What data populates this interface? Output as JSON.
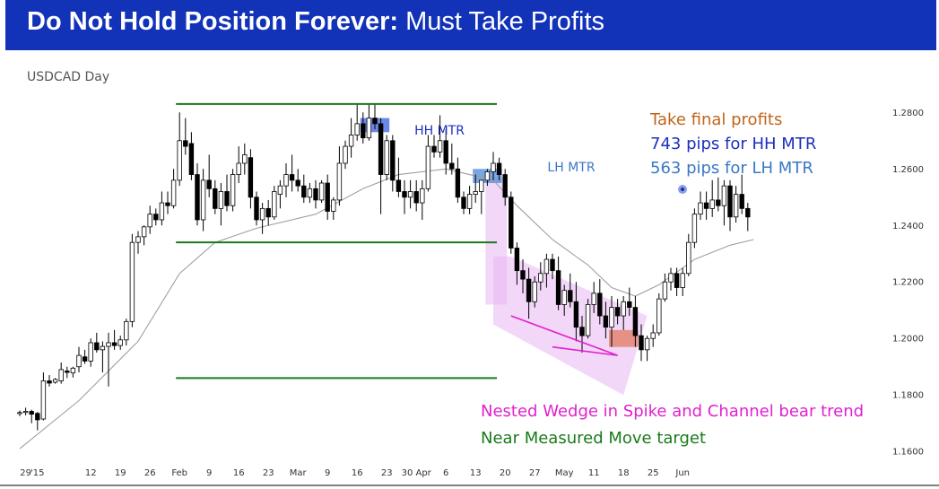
{
  "header": {
    "title_bold": "Do Not Hold Position Forever:",
    "title_rest": " Must Take Profits"
  },
  "chart_data": {
    "type": "candlestick",
    "symbol_label": "USDCAD Day",
    "y_ticks": [
      1.16,
      1.18,
      1.2,
      1.22,
      1.24,
      1.26,
      1.28
    ],
    "y_tick_labels": [
      "1.1600",
      "1.1800",
      "1.2000",
      "1.2200",
      "1.2400",
      "1.2600",
      "1.2800"
    ],
    "ylim": [
      1.148,
      1.302
    ],
    "x_tick_labels": [
      {
        "i": 1,
        "label": "29"
      },
      {
        "i": 3,
        "label": "'15"
      },
      {
        "i": 12,
        "label": "12"
      },
      {
        "i": 17,
        "label": "19"
      },
      {
        "i": 22,
        "label": "26"
      },
      {
        "i": 27,
        "label": "Feb"
      },
      {
        "i": 32,
        "label": "9"
      },
      {
        "i": 37,
        "label": "16"
      },
      {
        "i": 42,
        "label": "23"
      },
      {
        "i": 47,
        "label": "Mar"
      },
      {
        "i": 52,
        "label": "9"
      },
      {
        "i": 57,
        "label": "16"
      },
      {
        "i": 62,
        "label": "23"
      },
      {
        "i": 67,
        "label": "30 Apr"
      },
      {
        "i": 72,
        "label": "6"
      },
      {
        "i": 77,
        "label": "13"
      },
      {
        "i": 82,
        "label": "20"
      },
      {
        "i": 87,
        "label": "27"
      },
      {
        "i": 92,
        "label": "May"
      },
      {
        "i": 97,
        "label": "11"
      },
      {
        "i": 102,
        "label": "18"
      },
      {
        "i": 107,
        "label": "25"
      },
      {
        "i": 112,
        "label": "Jun"
      }
    ],
    "candles": [
      [
        1.1735,
        1.1745,
        1.1725,
        1.1738
      ],
      [
        1.1738,
        1.1755,
        1.1728,
        1.1742
      ],
      [
        1.1742,
        1.1748,
        1.17,
        1.1732
      ],
      [
        1.1735,
        1.174,
        1.1675,
        1.1712
      ],
      [
        1.1715,
        1.188,
        1.171,
        1.185
      ],
      [
        1.185,
        1.187,
        1.183,
        1.1842
      ],
      [
        1.1845,
        1.186,
        1.184,
        1.1855
      ],
      [
        1.185,
        1.1915,
        1.184,
        1.189
      ],
      [
        1.1885,
        1.19,
        1.186,
        1.188
      ],
      [
        1.1878,
        1.19,
        1.1862,
        1.1895
      ],
      [
        1.19,
        1.197,
        1.188,
        1.194
      ],
      [
        1.1935,
        1.196,
        1.191,
        1.192
      ],
      [
        1.192,
        1.2,
        1.19,
        1.1985
      ],
      [
        1.1985,
        1.202,
        1.195,
        1.196
      ],
      [
        1.196,
        1.199,
        1.188,
        1.1972
      ],
      [
        1.1972,
        1.202,
        1.183,
        1.1985
      ],
      [
        1.1985,
        1.203,
        1.196,
        1.1975
      ],
      [
        1.1975,
        1.201,
        1.196,
        1.1995
      ],
      [
        1.1995,
        1.207,
        1.1975,
        1.206
      ],
      [
        1.206,
        1.237,
        1.204,
        1.234
      ],
      [
        1.234,
        1.238,
        1.23,
        1.236
      ],
      [
        1.236,
        1.24,
        1.233,
        1.2395
      ],
      [
        1.2395,
        1.247,
        1.237,
        1.244
      ],
      [
        1.244,
        1.246,
        1.24,
        1.242
      ],
      [
        1.242,
        1.252,
        1.24,
        1.248
      ],
      [
        1.248,
        1.252,
        1.244,
        1.247
      ],
      [
        1.247,
        1.26,
        1.246,
        1.256
      ],
      [
        1.256,
        1.28,
        1.254,
        1.27
      ],
      [
        1.27,
        1.278,
        1.265,
        1.268
      ],
      [
        1.269,
        1.273,
        1.256,
        1.258
      ],
      [
        1.258,
        1.262,
        1.24,
        1.242
      ],
      [
        1.242,
        1.26,
        1.238,
        1.256
      ],
      [
        1.256,
        1.265,
        1.25,
        1.253
      ],
      [
        1.253,
        1.256,
        1.244,
        1.246
      ],
      [
        1.246,
        1.255,
        1.24,
        1.252
      ],
      [
        1.252,
        1.258,
        1.245,
        1.247
      ],
      [
        1.247,
        1.26,
        1.245,
        1.258
      ],
      [
        1.258,
        1.268,
        1.255,
        1.262
      ],
      [
        1.262,
        1.269,
        1.258,
        1.265
      ],
      [
        1.264,
        1.267,
        1.246,
        1.25
      ],
      [
        1.25,
        1.252,
        1.24,
        1.242
      ],
      [
        1.242,
        1.248,
        1.237,
        1.246
      ],
      [
        1.246,
        1.249,
        1.24,
        1.243
      ],
      [
        1.243,
        1.254,
        1.242,
        1.252
      ],
      [
        1.251,
        1.256,
        1.246,
        1.254
      ],
      [
        1.254,
        1.262,
        1.25,
        1.258
      ],
      [
        1.258,
        1.265,
        1.252,
        1.256
      ],
      [
        1.256,
        1.26,
        1.252,
        1.254
      ],
      [
        1.254,
        1.258,
        1.248,
        1.25
      ],
      [
        1.25,
        1.255,
        1.248,
        1.253
      ],
      [
        1.253,
        1.256,
        1.246,
        1.249
      ],
      [
        1.249,
        1.256,
        1.248,
        1.255
      ],
      [
        1.255,
        1.258,
        1.242,
        1.245
      ],
      [
        1.245,
        1.25,
        1.242,
        1.249
      ],
      [
        1.249,
        1.268,
        1.247,
        1.262
      ],
      [
        1.262,
        1.27,
        1.26,
        1.268
      ],
      [
        1.268,
        1.278,
        1.264,
        1.272
      ],
      [
        1.272,
        1.283,
        1.27,
        1.276
      ],
      [
        1.276,
        1.28,
        1.269,
        1.271
      ],
      [
        1.271,
        1.283,
        1.27,
        1.278
      ],
      [
        1.278,
        1.283,
        1.274,
        1.276
      ],
      [
        1.276,
        1.278,
        1.244,
        1.258
      ],
      [
        1.258,
        1.272,
        1.256,
        1.27
      ],
      [
        1.27,
        1.272,
        1.252,
        1.256
      ],
      [
        1.256,
        1.264,
        1.25,
        1.252
      ],
      [
        1.252,
        1.256,
        1.244,
        1.25
      ],
      [
        1.25,
        1.256,
        1.246,
        1.252
      ],
      [
        1.252,
        1.256,
        1.245,
        1.248
      ],
      [
        1.248,
        1.256,
        1.242,
        1.253
      ],
      [
        1.253,
        1.272,
        1.252,
        1.268
      ],
      [
        1.268,
        1.272,
        1.264,
        1.266
      ],
      [
        1.266,
        1.279,
        1.264,
        1.27
      ],
      [
        1.27,
        1.274,
        1.258,
        1.262
      ],
      [
        1.262,
        1.269,
        1.258,
        1.26
      ],
      [
        1.26,
        1.264,
        1.248,
        1.25
      ],
      [
        1.25,
        1.252,
        1.244,
        1.246
      ],
      [
        1.246,
        1.254,
        1.244,
        1.251
      ],
      [
        1.251,
        1.258,
        1.248,
        1.252
      ],
      [
        1.252,
        1.256,
        1.244,
        1.256
      ],
      [
        1.256,
        1.26,
        1.254,
        1.259
      ],
      [
        1.259,
        1.266,
        1.256,
        1.262
      ],
      [
        1.262,
        1.264,
        1.256,
        1.258
      ],
      [
        1.258,
        1.26,
        1.247,
        1.25
      ],
      [
        1.25,
        1.252,
        1.23,
        1.232
      ],
      [
        1.232,
        1.234,
        1.219,
        1.224
      ],
      [
        1.224,
        1.228,
        1.216,
        1.221
      ],
      [
        1.221,
        1.225,
        1.207,
        1.213
      ],
      [
        1.213,
        1.222,
        1.211,
        1.22
      ],
      [
        1.22,
        1.227,
        1.217,
        1.223
      ],
      [
        1.223,
        1.23,
        1.218,
        1.228
      ],
      [
        1.228,
        1.23,
        1.221,
        1.224
      ],
      [
        1.224,
        1.229,
        1.21,
        1.212
      ],
      [
        1.212,
        1.219,
        1.208,
        1.217
      ],
      [
        1.217,
        1.223,
        1.211,
        1.213
      ],
      [
        1.213,
        1.22,
        1.199,
        1.204
      ],
      [
        1.204,
        1.208,
        1.195,
        1.201
      ],
      [
        1.201,
        1.214,
        1.2,
        1.212
      ],
      [
        1.212,
        1.22,
        1.209,
        1.216
      ],
      [
        1.216,
        1.221,
        1.205,
        1.208
      ],
      [
        1.208,
        1.213,
        1.2,
        1.204
      ],
      [
        1.204,
        1.215,
        1.197,
        1.211
      ],
      [
        1.211,
        1.214,
        1.205,
        1.208
      ],
      [
        1.208,
        1.215,
        1.203,
        1.213
      ],
      [
        1.213,
        1.218,
        1.208,
        1.211
      ],
      [
        1.211,
        1.215,
        1.197,
        1.201
      ],
      [
        1.201,
        1.205,
        1.192,
        1.196
      ],
      [
        1.196,
        1.201,
        1.192,
        1.2
      ],
      [
        1.2,
        1.205,
        1.197,
        1.202
      ],
      [
        1.202,
        1.216,
        1.201,
        1.214
      ],
      [
        1.214,
        1.223,
        1.213,
        1.22
      ],
      [
        1.22,
        1.225,
        1.217,
        1.223
      ],
      [
        1.223,
        1.225,
        1.215,
        1.218
      ],
      [
        1.218,
        1.225,
        1.215,
        1.223
      ],
      [
        1.223,
        1.237,
        1.222,
        1.234
      ],
      [
        1.234,
        1.246,
        1.232,
        1.244
      ],
      [
        1.244,
        1.252,
        1.242,
        1.248
      ],
      [
        1.248,
        1.252,
        1.242,
        1.246
      ],
      [
        1.246,
        1.256,
        1.243,
        1.249
      ],
      [
        1.249,
        1.257,
        1.245,
        1.247
      ],
      [
        1.247,
        1.256,
        1.24,
        1.254
      ],
      [
        1.254,
        1.256,
        1.238,
        1.243
      ],
      [
        1.243,
        1.254,
        1.241,
        1.251
      ],
      [
        1.251,
        1.258,
        1.244,
        1.246
      ],
      [
        1.246,
        1.248,
        1.238,
        1.243
      ]
    ],
    "moving_average": [
      [
        0,
        1.161
      ],
      [
        10,
        1.178
      ],
      [
        20,
        1.199
      ],
      [
        27,
        1.223
      ],
      [
        33,
        1.234
      ],
      [
        40,
        1.239
      ],
      [
        50,
        1.244
      ],
      [
        58,
        1.253
      ],
      [
        64,
        1.258
      ],
      [
        72,
        1.26
      ],
      [
        80,
        1.256
      ],
      [
        84,
        1.247
      ],
      [
        90,
        1.235
      ],
      [
        96,
        1.226
      ],
      [
        100,
        1.218
      ],
      [
        104,
        1.215
      ],
      [
        108,
        1.219
      ],
      [
        114,
        1.228
      ],
      [
        120,
        1.233
      ],
      [
        124,
        1.235
      ]
    ],
    "horizontal_lines": [
      {
        "from": 27,
        "to": 80,
        "y": 1.283,
        "color": "#1a7a1a"
      },
      {
        "from": 27,
        "to": 80,
        "y": 1.234,
        "color": "#1a7a1a"
      },
      {
        "from": 27,
        "to": 80,
        "y": 1.186,
        "color": "#1a7a1a"
      }
    ],
    "highlights": [
      {
        "from": 58,
        "to": 62,
        "y_top": 1.278,
        "y_bottom": 1.273,
        "color": "#3a5fe0"
      },
      {
        "from": 77,
        "to": 81,
        "y_top": 1.26,
        "y_bottom": 1.255,
        "color": "#4d8ad8"
      },
      {
        "from": 100,
        "to": 104,
        "y_top": 1.203,
        "y_bottom": 1.197,
        "color": "#e07a5f"
      }
    ],
    "channel_polygon": [
      [
        80,
        1.229
      ],
      [
        83,
        1.229
      ],
      [
        106,
        1.208
      ],
      [
        102,
        1.18
      ],
      [
        80,
        1.205
      ]
    ],
    "spike_box": {
      "from": 79,
      "to": 82,
      "y_top": 1.257,
      "y_bottom": 1.212
    },
    "wedge_lines": [
      [
        [
          83,
          1.208
        ],
        [
          101,
          1.194
        ]
      ],
      [
        [
          90,
          1.197
        ],
        [
          101,
          1.194
        ]
      ]
    ],
    "annotations": {
      "hh_mtr": "HH MTR",
      "lh_mtr": "LH MTR",
      "take_profits": "Take final profits",
      "pips_hh": "743 pips for HH MTR",
      "pips_lh": "563 pips for LH MTR",
      "wedge": "Nested Wedge in Spike and Channel bear trend",
      "mm_target": "Near Measured Move target"
    },
    "colors": {
      "bull_fill": "#ffffff",
      "bear_fill": "#000000",
      "candle_stroke": "#000000",
      "ma_line": "#a0a0a0",
      "hh_text": "#1b2fbf",
      "lh_text": "#3a78c8",
      "take_profits_text": "#c0651a",
      "wedge_text": "#e020d0",
      "target_text": "#1a7a1a",
      "channel_fill": "#e8b6f2",
      "wedge_line": "#e020d0"
    }
  }
}
